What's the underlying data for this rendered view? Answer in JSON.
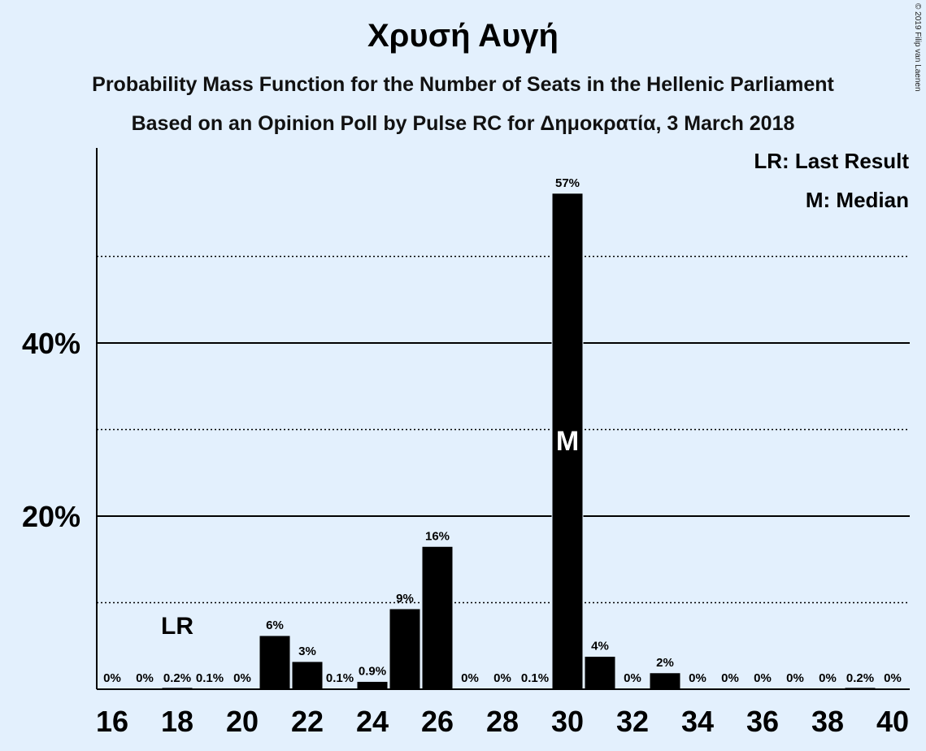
{
  "chart_data": {
    "type": "bar",
    "title": "Χρυσή Αυγή",
    "subtitle_1": "Probability Mass Function for the Number of Seats in the Hellenic Parliament",
    "subtitle_2": "Based on an Opinion Poll by Pulse RC for Δημοκρατία, 3 March 2018",
    "copyright": "© 2019 Filip van Laenen",
    "categories": [
      16,
      17,
      18,
      19,
      20,
      21,
      22,
      23,
      24,
      25,
      26,
      27,
      28,
      29,
      30,
      31,
      32,
      33,
      34,
      35,
      36,
      37,
      38,
      39,
      40
    ],
    "values": [
      0,
      0,
      0.2,
      0.1,
      0,
      6.2,
      3.2,
      0.1,
      0.9,
      9.3,
      16.5,
      0,
      0,
      0.1,
      57.3,
      3.8,
      0,
      1.9,
      0,
      0,
      0,
      0,
      0,
      0.2,
      0
    ],
    "value_labels": [
      "0%",
      "0%",
      "0.2%",
      "0.1%",
      "0%",
      "6%",
      "3%",
      "0.1%",
      "0.9%",
      "9%",
      "16%",
      "0%",
      "0%",
      "0.1%",
      "57%",
      "4%",
      "0%",
      "2%",
      "0%",
      "0%",
      "0%",
      "0%",
      "0%",
      "0.2%",
      "0%"
    ],
    "x_tick_labels": [
      "16",
      "18",
      "20",
      "22",
      "24",
      "26",
      "28",
      "30",
      "32",
      "34",
      "36",
      "38",
      "40"
    ],
    "y_tick_labels": [
      "20%",
      "40%"
    ],
    "ylim": [
      0,
      62.5
    ],
    "gridlines_solid": [
      20,
      40
    ],
    "gridlines_dotted": [
      10,
      30,
      50
    ],
    "last_result": {
      "seat": 18,
      "label": "LR"
    },
    "median": {
      "seat": 30,
      "label": "M"
    },
    "legend": [
      "LR: Last Result",
      "M: Median"
    ],
    "colors": {
      "bar": "#000000",
      "background": "#e3f0fd",
      "text": "#000000"
    }
  }
}
